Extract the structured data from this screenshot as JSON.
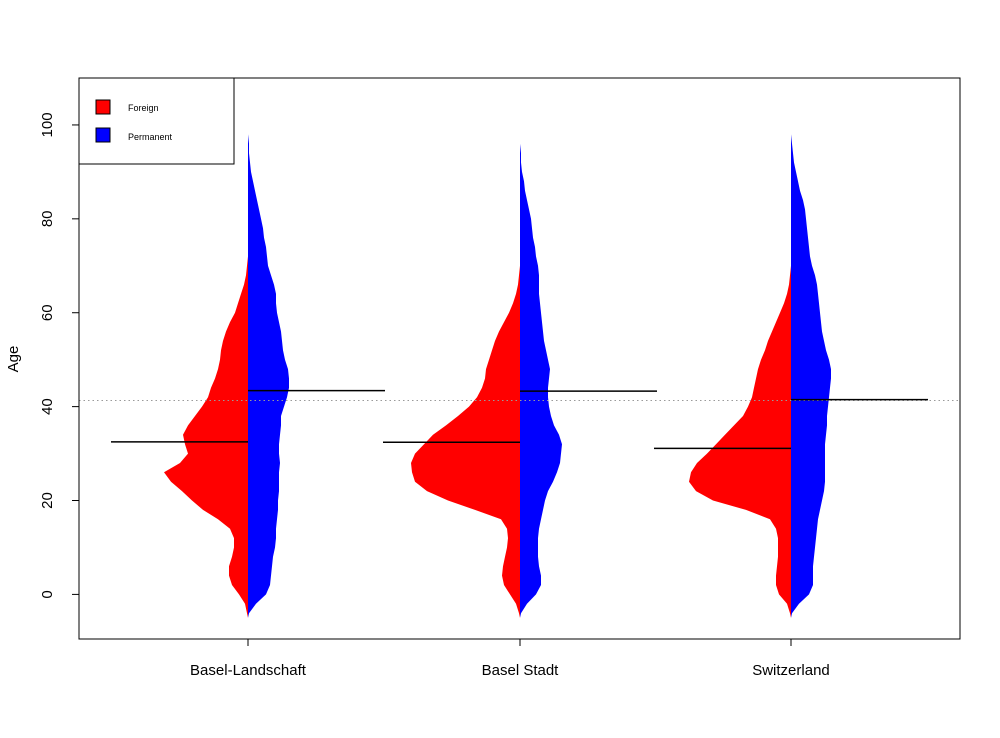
{
  "chart_data": {
    "type": "split-violin",
    "ylabel": "Age",
    "ylim": [
      -9.5,
      110
    ],
    "yticks": [
      0,
      20,
      40,
      60,
      80,
      100
    ],
    "grid": false,
    "legend": {
      "placement": "top-left",
      "entries": [
        {
          "label": "Foreign",
          "color": "#ff0000"
        },
        {
          "label": "Permanent",
          "color": "#0000ff"
        }
      ]
    },
    "overall_reference_line": 41.3,
    "categories": [
      "Basel-Landschaft",
      "Basel Stadt",
      "Switzerland"
    ],
    "series": [
      {
        "name": "Foreign",
        "color": "#ff0000",
        "side": "left",
        "means": [
          32.5,
          32.4,
          31.1
        ],
        "profiles": [
          [
            [
              -5,
              0
            ],
            [
              -4,
              1
            ],
            [
              -2,
              3
            ],
            [
              0,
              9
            ],
            [
              2,
              16
            ],
            [
              4,
              19
            ],
            [
              6,
              19
            ],
            [
              8,
              16
            ],
            [
              10,
              14
            ],
            [
              12,
              14
            ],
            [
              14,
              18
            ],
            [
              16,
              30
            ],
            [
              18,
              45
            ],
            [
              20,
              56
            ],
            [
              22,
              66
            ],
            [
              24,
              77
            ],
            [
              26,
              84
            ],
            [
              28,
              68
            ],
            [
              30,
              60
            ],
            [
              32,
              63
            ],
            [
              34,
              65
            ],
            [
              36,
              60
            ],
            [
              38,
              53
            ],
            [
              40,
              46
            ],
            [
              42,
              40
            ],
            [
              44,
              37
            ],
            [
              46,
              33
            ],
            [
              48,
              30
            ],
            [
              50,
              28
            ],
            [
              52,
              27
            ],
            [
              54,
              25
            ],
            [
              56,
              22
            ],
            [
              58,
              18
            ],
            [
              60,
              13
            ],
            [
              62,
              10
            ],
            [
              64,
              7
            ],
            [
              66,
              4
            ],
            [
              68,
              2
            ],
            [
              70,
              1
            ],
            [
              72,
              0
            ]
          ],
          [
            [
              -5,
              0
            ],
            [
              -4,
              1
            ],
            [
              -2,
              4
            ],
            [
              0,
              10
            ],
            [
              2,
              16
            ],
            [
              4,
              18
            ],
            [
              6,
              17
            ],
            [
              8,
              15
            ],
            [
              10,
              13
            ],
            [
              12,
              12
            ],
            [
              14,
              13
            ],
            [
              16,
              19
            ],
            [
              18,
              45
            ],
            [
              20,
              72
            ],
            [
              22,
              93
            ],
            [
              24,
              105
            ],
            [
              26,
              108
            ],
            [
              28,
              109
            ],
            [
              30,
              105
            ],
            [
              32,
              96
            ],
            [
              34,
              87
            ],
            [
              36,
              74
            ],
            [
              38,
              62
            ],
            [
              40,
              51
            ],
            [
              42,
              43
            ],
            [
              44,
              38
            ],
            [
              46,
              35
            ],
            [
              48,
              34
            ],
            [
              50,
              31
            ],
            [
              52,
              28
            ],
            [
              54,
              25
            ],
            [
              56,
              21
            ],
            [
              58,
              16
            ],
            [
              60,
              11
            ],
            [
              62,
              7
            ],
            [
              64,
              4
            ],
            [
              66,
              2
            ],
            [
              68,
              1
            ],
            [
              70,
              0
            ]
          ],
          [
            [
              -5,
              0
            ],
            [
              -4,
              1
            ],
            [
              -2,
              4
            ],
            [
              0,
              12
            ],
            [
              2,
              15
            ],
            [
              4,
              15
            ],
            [
              6,
              14
            ],
            [
              8,
              13
            ],
            [
              10,
              13
            ],
            [
              12,
              13
            ],
            [
              14,
              15
            ],
            [
              16,
              21
            ],
            [
              18,
              45
            ],
            [
              20,
              78
            ],
            [
              22,
              95
            ],
            [
              24,
              102
            ],
            [
              26,
              100
            ],
            [
              28,
              94
            ],
            [
              30,
              84
            ],
            [
              32,
              75
            ],
            [
              34,
              66
            ],
            [
              36,
              57
            ],
            [
              38,
              48
            ],
            [
              40,
              43
            ],
            [
              42,
              39
            ],
            [
              44,
              37
            ],
            [
              46,
              35
            ],
            [
              48,
              33
            ],
            [
              50,
              30
            ],
            [
              52,
              26
            ],
            [
              54,
              23
            ],
            [
              56,
              19
            ],
            [
              58,
              15
            ],
            [
              60,
              11
            ],
            [
              62,
              7
            ],
            [
              64,
              4
            ],
            [
              66,
              2
            ],
            [
              68,
              1
            ],
            [
              70,
              0
            ]
          ]
        ]
      },
      {
        "name": "Permanent",
        "color": "#0000ff",
        "side": "right",
        "means": [
          43.4,
          43.3,
          41.5
        ],
        "profiles": [
          [
            [
              -5,
              0
            ],
            [
              -4,
              1
            ],
            [
              -2,
              8
            ],
            [
              0,
              18
            ],
            [
              2,
              22
            ],
            [
              4,
              23
            ],
            [
              6,
              24
            ],
            [
              8,
              25
            ],
            [
              10,
              27
            ],
            [
              12,
              28
            ],
            [
              14,
              28
            ],
            [
              16,
              29
            ],
            [
              18,
              30
            ],
            [
              20,
              30
            ],
            [
              22,
              31
            ],
            [
              24,
              31
            ],
            [
              26,
              31
            ],
            [
              28,
              32
            ],
            [
              30,
              31
            ],
            [
              32,
              31
            ],
            [
              34,
              32
            ],
            [
              36,
              33
            ],
            [
              38,
              33
            ],
            [
              40,
              36
            ],
            [
              42,
              39
            ],
            [
              44,
              41
            ],
            [
              46,
              41
            ],
            [
              48,
              40
            ],
            [
              50,
              37
            ],
            [
              52,
              35
            ],
            [
              54,
              34
            ],
            [
              56,
              33
            ],
            [
              58,
              31
            ],
            [
              60,
              29
            ],
            [
              62,
              28
            ],
            [
              64,
              28
            ],
            [
              66,
              26
            ],
            [
              68,
              23
            ],
            [
              70,
              20
            ],
            [
              72,
              19
            ],
            [
              74,
              18
            ],
            [
              76,
              16
            ],
            [
              78,
              15
            ],
            [
              80,
              13
            ],
            [
              82,
              11
            ],
            [
              84,
              9
            ],
            [
              86,
              7
            ],
            [
              88,
              5
            ],
            [
              90,
              3
            ],
            [
              92,
              2
            ],
            [
              94,
              1
            ],
            [
              96,
              1
            ],
            [
              98,
              0
            ],
            [
              102,
              0
            ]
          ],
          [
            [
              -5,
              0
            ],
            [
              -4,
              1
            ],
            [
              -2,
              7
            ],
            [
              0,
              16
            ],
            [
              2,
              21
            ],
            [
              4,
              21
            ],
            [
              6,
              19
            ],
            [
              8,
              18
            ],
            [
              10,
              18
            ],
            [
              12,
              18
            ],
            [
              14,
              19
            ],
            [
              16,
              21
            ],
            [
              18,
              23
            ],
            [
              20,
              25
            ],
            [
              22,
              28
            ],
            [
              24,
              33
            ],
            [
              26,
              37
            ],
            [
              28,
              40
            ],
            [
              30,
              41
            ],
            [
              32,
              42
            ],
            [
              34,
              39
            ],
            [
              36,
              34
            ],
            [
              38,
              31
            ],
            [
              40,
              29
            ],
            [
              42,
              28
            ],
            [
              44,
              28
            ],
            [
              46,
              29
            ],
            [
              48,
              30
            ],
            [
              50,
              28
            ],
            [
              52,
              26
            ],
            [
              54,
              24
            ],
            [
              56,
              23
            ],
            [
              58,
              22
            ],
            [
              60,
              21
            ],
            [
              62,
              20
            ],
            [
              64,
              19
            ],
            [
              66,
              19
            ],
            [
              68,
              19
            ],
            [
              70,
              18
            ],
            [
              72,
              16
            ],
            [
              74,
              15
            ],
            [
              76,
              13
            ],
            [
              78,
              12
            ],
            [
              80,
              11
            ],
            [
              82,
              9
            ],
            [
              84,
              7
            ],
            [
              86,
              5
            ],
            [
              88,
              4
            ],
            [
              90,
              2
            ],
            [
              92,
              1
            ],
            [
              94,
              1
            ],
            [
              96,
              0
            ],
            [
              102,
              0
            ]
          ],
          [
            [
              -5,
              0
            ],
            [
              -4,
              1
            ],
            [
              -2,
              8
            ],
            [
              0,
              18
            ],
            [
              2,
              22
            ],
            [
              4,
              22
            ],
            [
              6,
              22
            ],
            [
              8,
              23
            ],
            [
              10,
              24
            ],
            [
              12,
              25
            ],
            [
              14,
              26
            ],
            [
              16,
              27
            ],
            [
              18,
              29
            ],
            [
              20,
              31
            ],
            [
              22,
              33
            ],
            [
              24,
              34
            ],
            [
              26,
              34
            ],
            [
              28,
              34
            ],
            [
              30,
              34
            ],
            [
              32,
              34
            ],
            [
              34,
              35
            ],
            [
              36,
              36
            ],
            [
              38,
              36
            ],
            [
              40,
              37
            ],
            [
              42,
              38
            ],
            [
              44,
              39
            ],
            [
              46,
              40
            ],
            [
              48,
              40
            ],
            [
              50,
              38
            ],
            [
              52,
              35
            ],
            [
              54,
              33
            ],
            [
              56,
              31
            ],
            [
              58,
              30
            ],
            [
              60,
              29
            ],
            [
              62,
              28
            ],
            [
              64,
              27
            ],
            [
              66,
              26
            ],
            [
              68,
              24
            ],
            [
              70,
              21
            ],
            [
              72,
              19
            ],
            [
              74,
              18
            ],
            [
              76,
              17
            ],
            [
              78,
              16
            ],
            [
              80,
              15
            ],
            [
              82,
              14
            ],
            [
              84,
              12
            ],
            [
              86,
              9
            ],
            [
              88,
              7
            ],
            [
              90,
              5
            ],
            [
              92,
              3
            ],
            [
              94,
              2
            ],
            [
              96,
              1
            ],
            [
              98,
              0
            ],
            [
              102,
              0
            ]
          ]
        ]
      }
    ]
  }
}
